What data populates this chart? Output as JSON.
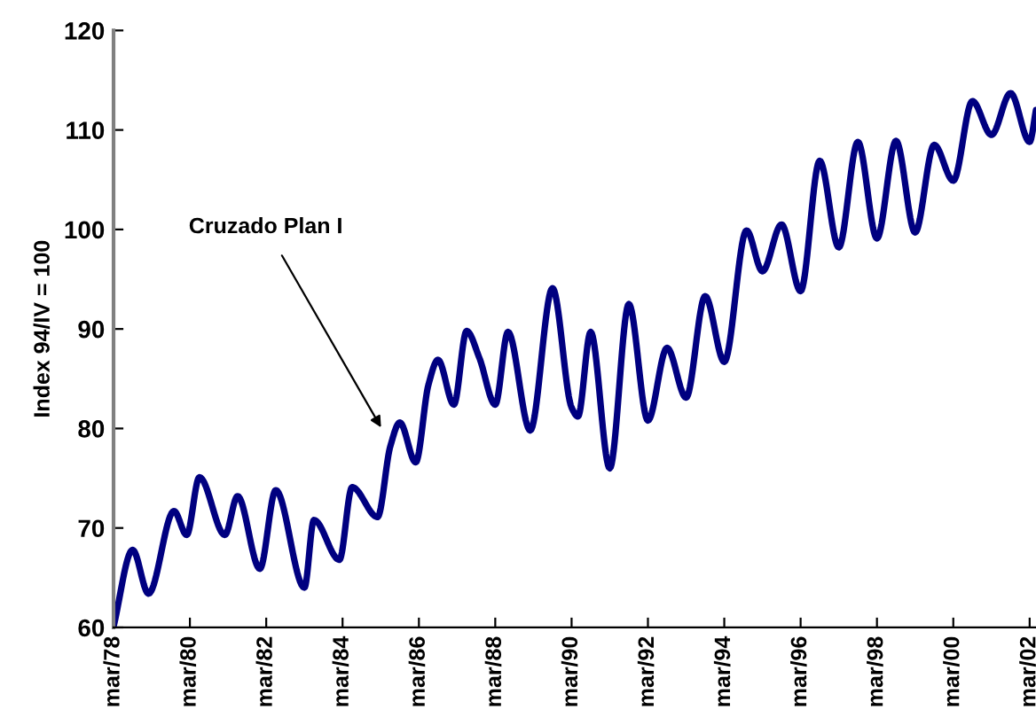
{
  "chart_data": {
    "type": "line",
    "ylabel": "Index 94/IV = 100",
    "x": [
      "1978-03",
      "1978-09",
      "1979-02",
      "1979-10",
      "1980-02",
      "1980-06",
      "1981-02",
      "1981-06",
      "1982-01",
      "1982-06",
      "1983-03",
      "1983-06",
      "1984-02",
      "1984-06",
      "1985-02",
      "1985-06",
      "1985-09",
      "1986-02",
      "1986-06",
      "1986-09",
      "1987-02",
      "1987-06",
      "1987-10",
      "1988-03",
      "1988-07",
      "1989-02",
      "1989-09",
      "1990-03",
      "1990-05",
      "1990-09",
      "1991-03",
      "1991-09",
      "1992-03",
      "1992-09",
      "1993-03",
      "1993-09",
      "1994-03",
      "1994-10",
      "1995-03",
      "1995-09",
      "1996-03",
      "1996-09",
      "1997-03",
      "1997-09",
      "1998-03",
      "1998-09",
      "1999-03",
      "1999-09",
      "2000-03",
      "2000-09",
      "2001-03",
      "2001-09",
      "2002-03",
      "2002-05"
    ],
    "series": [
      {
        "color": "#000080",
        "values": [
          60.1,
          67.8,
          63.4,
          71.7,
          69.3,
          75.1,
          69.3,
          73.2,
          65.9,
          73.8,
          64.0,
          70.8,
          66.8,
          74.1,
          71.1,
          78.2,
          80.6,
          76.6,
          84.4,
          86.9,
          82.4,
          89.8,
          87.1,
          82.4,
          89.7,
          79.8,
          94.1,
          82.1,
          81.2,
          89.7,
          76.0,
          92.5,
          80.8,
          88.1,
          83.1,
          93.3,
          86.7,
          99.9,
          95.8,
          100.5,
          93.8,
          106.9,
          98.2,
          108.8,
          99.1,
          108.9,
          99.7,
          108.5,
          104.9,
          112.9,
          109.5,
          113.7,
          108.8,
          112.0
        ]
      }
    ],
    "xlim": [
      "1978-03",
      "2002-05"
    ],
    "xticks": [
      {
        "value": "1978-03",
        "label": "mar/78"
      },
      {
        "value": "1980-03",
        "label": "mar/80"
      },
      {
        "value": "1982-03",
        "label": "mar/82"
      },
      {
        "value": "1984-03",
        "label": "mar/84"
      },
      {
        "value": "1986-03",
        "label": "mar/86"
      },
      {
        "value": "1988-03",
        "label": "mar/88"
      },
      {
        "value": "1990-03",
        "label": "mar/90"
      },
      {
        "value": "1992-03",
        "label": "mar/92"
      },
      {
        "value": "1994-03",
        "label": "mar/94"
      },
      {
        "value": "1996-03",
        "label": "mar/96"
      },
      {
        "value": "1998-03",
        "label": "mar/98"
      },
      {
        "value": "2000-03",
        "label": "mar/00"
      },
      {
        "value": "2002-03",
        "label": "mar/02"
      }
    ],
    "ylim": [
      60,
      120
    ],
    "yticks": [
      60,
      70,
      80,
      90,
      100,
      110,
      120
    ],
    "grid": false,
    "marker": "none",
    "line_style": "solid",
    "annotations": [
      "Cruzado Plan I"
    ]
  }
}
